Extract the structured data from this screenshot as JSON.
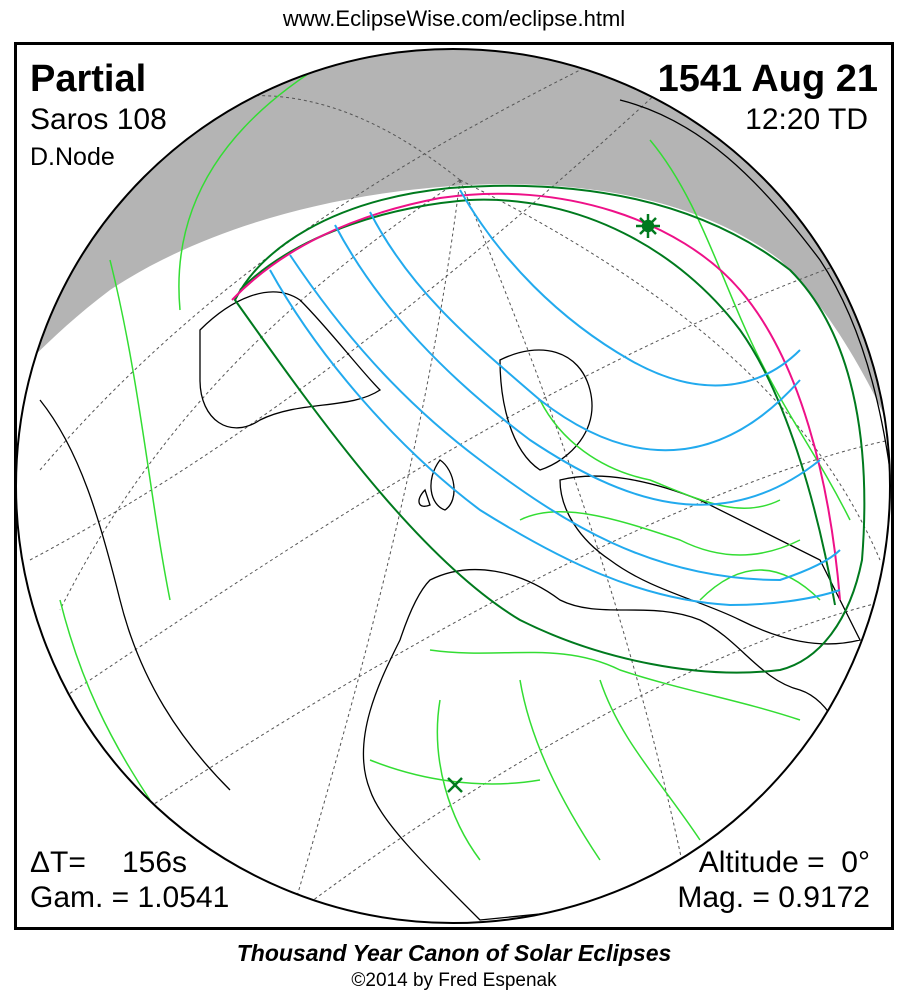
{
  "header": {
    "url": "www.EclipseWise.com/eclipse.html"
  },
  "eclipse": {
    "type": "Partial",
    "saros": "Saros 108",
    "node": "D.Node",
    "date": "1541 Aug 21",
    "time": "12:20 TD",
    "delta_t_label": "ΔT=",
    "delta_t_value": "156s",
    "gamma": "Gam. = 1.0541",
    "altitude": "Altitude =  0°",
    "magnitude": "Mag. = 0.9172"
  },
  "map": {
    "colors": {
      "night": "#b4b4b4",
      "borders": "#33dd33",
      "penumbra_limit": "#007a1e",
      "max_eclipse_line": "#ee1188",
      "magnitude_lines": "#22aaee",
      "coastline": "#000000"
    },
    "markers": [
      {
        "name": "greatest-eclipse",
        "icon": "star-burst"
      },
      {
        "name": "sub-solar-point",
        "icon": "x-mark"
      }
    ]
  },
  "footer": {
    "title": "Thousand Year Canon of Solar Eclipses",
    "copyright": "©2014 by Fred Espenak"
  }
}
